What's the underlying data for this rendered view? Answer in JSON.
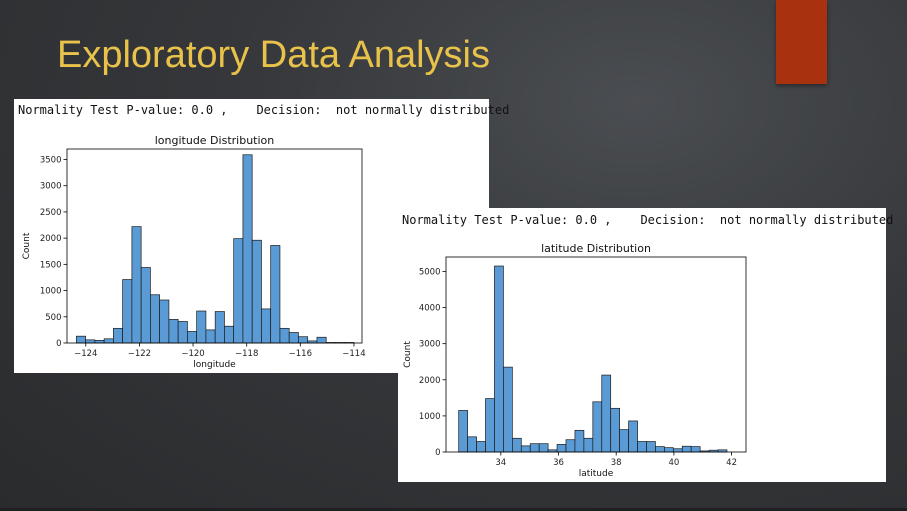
{
  "slide": {
    "title": "Exploratory Data Analysis",
    "title_color": "#e8c24a",
    "accent_color": "#a8320f"
  },
  "charts": [
    {
      "normality": {
        "label": "Normality Test P-value:",
        "pvalue": "0.0 ,",
        "decision_label": "Decision:",
        "decision": "not normally distributed"
      }
    },
    {
      "normality": {
        "label": "Normality Test P-value:",
        "pvalue": "0.0 ,",
        "decision_label": "Decision:",
        "decision": "not normally distributed"
      }
    }
  ],
  "chart_data": [
    {
      "type": "bar",
      "title": "longitude Distribution",
      "xlabel": "longitude",
      "ylabel": "Count",
      "bar_color": "#5b9bd5",
      "xlim": [
        -124.7,
        -113.7
      ],
      "ylim": [
        0,
        3700
      ],
      "xticks": [
        -124,
        -122,
        -120,
        -118,
        -116,
        -114
      ],
      "xtick_labels": [
        "−124",
        "−122",
        "−120",
        "−118",
        "−116",
        "−114"
      ],
      "yticks": [
        0,
        500,
        1000,
        1500,
        2000,
        2500,
        3000,
        3500
      ],
      "bin_start": -124.35,
      "bin_width": 0.345,
      "counts": [
        130,
        60,
        50,
        80,
        280,
        1210,
        2220,
        1440,
        920,
        820,
        450,
        410,
        220,
        610,
        250,
        600,
        320,
        1990,
        3590,
        1960,
        650,
        1860,
        280,
        200,
        120,
        40,
        110,
        10,
        10,
        10,
        0
      ],
      "grid": false
    },
    {
      "type": "bar",
      "title": "latitude Distribution",
      "xlabel": "latitude",
      "ylabel": "Count",
      "bar_color": "#5b9bd5",
      "xlim": [
        32.1,
        42.5
      ],
      "ylim": [
        0,
        5400
      ],
      "xticks": [
        34,
        36,
        38,
        40,
        42
      ],
      "xtick_labels": [
        "34",
        "36",
        "38",
        "40",
        "42"
      ],
      "yticks": [
        0,
        1000,
        2000,
        3000,
        4000,
        5000
      ],
      "bin_start": 32.54,
      "bin_width": 0.31,
      "counts": [
        1150,
        420,
        290,
        1480,
        5150,
        2350,
        380,
        170,
        230,
        230,
        60,
        210,
        340,
        600,
        380,
        1390,
        2130,
        1210,
        620,
        860,
        290,
        290,
        150,
        120,
        90,
        160,
        150,
        30,
        50,
        60
      ],
      "grid": false
    }
  ]
}
